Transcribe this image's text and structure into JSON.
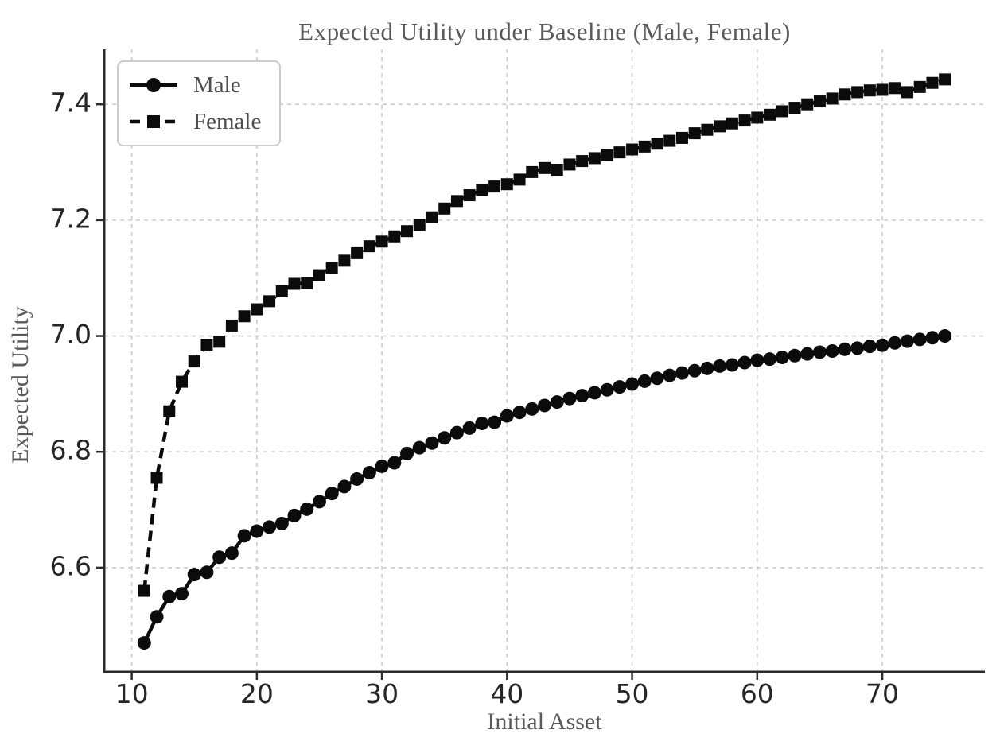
{
  "chart_data": {
    "type": "line",
    "title": "Expected Utility under Baseline (Male, Female)",
    "xlabel": "Initial Asset",
    "ylabel": "Expected Utility",
    "xlim": [
      7.8,
      78.2
    ],
    "ylim": [
      6.42,
      7.495
    ],
    "xticks": [
      10,
      20,
      30,
      40,
      50,
      60,
      70
    ],
    "yticks": [
      6.6,
      6.8,
      7.0,
      7.2,
      7.4
    ],
    "grid": true,
    "grid_style": "dashed",
    "legend_position": "upper left",
    "x": [
      11,
      12,
      13,
      14,
      15,
      16,
      17,
      18,
      19,
      20,
      21,
      22,
      23,
      24,
      25,
      26,
      27,
      28,
      29,
      30,
      31,
      32,
      33,
      34,
      35,
      36,
      37,
      38,
      39,
      40,
      41,
      42,
      43,
      44,
      45,
      46,
      47,
      48,
      49,
      50,
      51,
      52,
      53,
      54,
      55,
      56,
      57,
      58,
      59,
      60,
      61,
      62,
      63,
      64,
      65,
      66,
      67,
      68,
      69,
      70,
      71,
      72,
      73,
      74,
      75
    ],
    "series": [
      {
        "name": "Male",
        "marker": "circle",
        "line_style": "solid",
        "color": "#0b0b0b",
        "values": [
          6.47,
          6.515,
          6.55,
          6.555,
          6.588,
          6.592,
          6.618,
          6.625,
          6.655,
          6.663,
          6.67,
          6.676,
          6.69,
          6.701,
          6.714,
          6.728,
          6.74,
          6.753,
          6.764,
          6.775,
          6.781,
          6.797,
          6.807,
          6.815,
          6.824,
          6.833,
          6.841,
          6.849,
          6.851,
          6.862,
          6.868,
          6.874,
          6.88,
          6.886,
          6.892,
          6.897,
          6.902,
          6.907,
          6.912,
          6.917,
          6.922,
          6.927,
          6.932,
          6.936,
          6.94,
          6.944,
          6.948,
          6.95,
          6.954,
          6.958,
          6.96,
          6.963,
          6.966,
          6.969,
          6.972,
          6.974,
          6.977,
          6.979,
          6.982,
          6.984,
          6.988,
          6.991,
          6.994,
          6.997,
          7.0
        ]
      },
      {
        "name": "Female",
        "marker": "square",
        "line_style": "dashed",
        "color": "#0b0b0b",
        "values": [
          6.56,
          6.755,
          6.87,
          6.921,
          6.956,
          6.985,
          6.99,
          7.018,
          7.034,
          7.046,
          7.06,
          7.077,
          7.09,
          7.091,
          7.105,
          7.118,
          7.13,
          7.143,
          7.155,
          7.163,
          7.172,
          7.181,
          7.192,
          7.205,
          7.22,
          7.233,
          7.243,
          7.252,
          7.258,
          7.262,
          7.27,
          7.283,
          7.29,
          7.287,
          7.296,
          7.302,
          7.307,
          7.312,
          7.317,
          7.322,
          7.327,
          7.332,
          7.337,
          7.342,
          7.35,
          7.356,
          7.362,
          7.367,
          7.372,
          7.377,
          7.382,
          7.388,
          7.394,
          7.4,
          7.405,
          7.41,
          7.417,
          7.421,
          7.424,
          7.425,
          7.428,
          7.421,
          7.43,
          7.437,
          7.443
        ]
      }
    ]
  },
  "style": {
    "grid_color": "#cbcbcb",
    "spine_color": "#2b2b2b",
    "tick_label_color": "#262626",
    "text_color": "#595959",
    "legend_border_color": "#cccccc",
    "background": "#ffffff"
  }
}
